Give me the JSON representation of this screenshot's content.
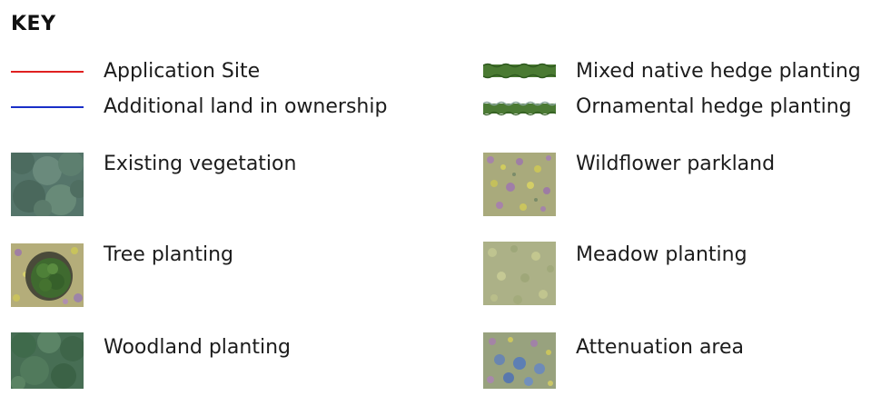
{
  "title": "KEY",
  "lines": [
    {
      "label": "Application Site",
      "color": "#e02020"
    },
    {
      "label": "Additional land in ownership",
      "color": "#1a2fc8"
    }
  ],
  "left_items": [
    {
      "label": "Existing vegetation",
      "texture": "existing-vegetation"
    },
    {
      "label": "Tree planting",
      "texture": "tree-planting"
    },
    {
      "label": "Woodland planting",
      "texture": "woodland-planting"
    }
  ],
  "hedges": [
    {
      "label": "Mixed native hedge planting",
      "texture": "mixed-native-hedge"
    },
    {
      "label": "Ornamental hedge planting",
      "texture": "ornamental-hedge"
    }
  ],
  "right_items": [
    {
      "label": "Wildflower parkland",
      "texture": "wildflower-parkland"
    },
    {
      "label": "Meadow planting",
      "texture": "meadow-planting"
    },
    {
      "label": "Attenuation area",
      "texture": "attenuation-area"
    }
  ]
}
